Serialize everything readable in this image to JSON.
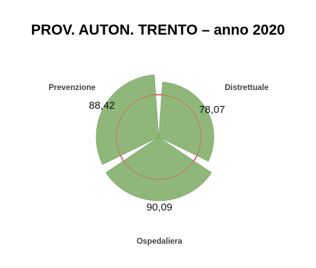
{
  "chart_data": {
    "type": "polar-bar",
    "title": "PROV. AUTON. TRENTO – anno 2020",
    "categories": [
      "Prevenzione",
      "Distrettuale",
      "Ospedaliera"
    ],
    "values": [
      88.42,
      78.07,
      90.09
    ],
    "value_labels": [
      "88,42",
      "78,07",
      "90,09"
    ],
    "threshold": 60,
    "rlim": [
      0,
      100
    ],
    "colors": {
      "bar_fill": "#90b77a",
      "bar_stroke": "#6f9a5c",
      "threshold_line_above": "#b98060",
      "threshold_line_below": "#e0202a"
    }
  }
}
